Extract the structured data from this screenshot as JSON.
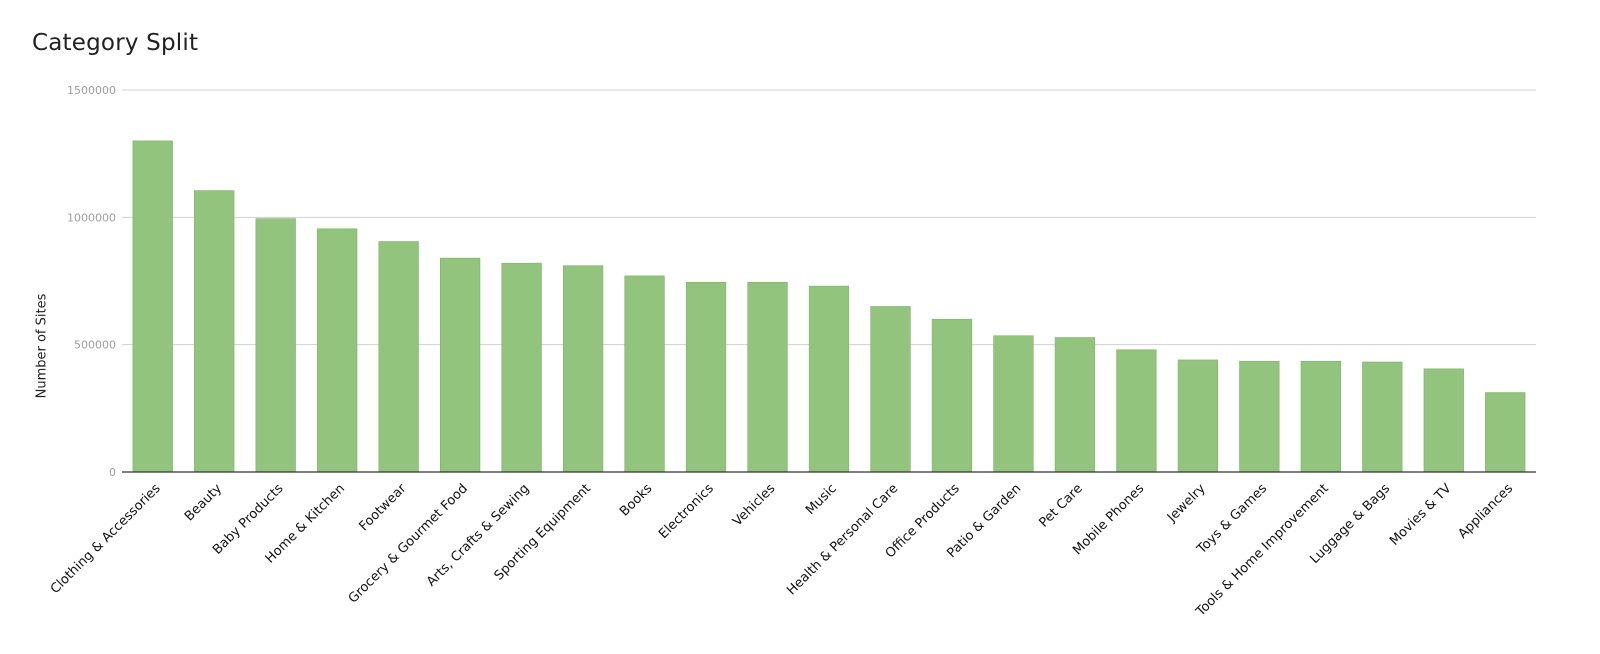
{
  "chart_data": {
    "type": "bar",
    "title": "Category Split",
    "xlabel": "",
    "ylabel": "Number of Sites",
    "ylim": [
      0,
      1500000
    ],
    "yticks": [
      0,
      500000,
      1000000,
      1500000
    ],
    "grid": true,
    "legend": "none",
    "bar_color": "#93c47d",
    "categories": [
      "Clothing & Accessories",
      "Beauty",
      "Baby Products",
      "Home & Kitchen",
      "Footwear",
      "Grocery & Gourmet Food",
      "Arts, Crafts & Sewing",
      "Sporting Equipment",
      "Books",
      "Electronics",
      "Vehicles",
      "Music",
      "Health & Personal Care",
      "Office Products",
      "Patio & Garden",
      "Pet Care",
      "Mobile Phones",
      "Jewelry",
      "Toys & Games",
      "Tools & Home Improvement",
      "Luggage & Bags",
      "Movies & TV",
      "Appliances"
    ],
    "values": [
      1300000,
      1105000,
      995000,
      955000,
      905000,
      840000,
      820000,
      810000,
      770000,
      745000,
      745000,
      730000,
      650000,
      600000,
      535000,
      528000,
      480000,
      440000,
      435000,
      435000,
      432000,
      405000,
      312000
    ]
  }
}
